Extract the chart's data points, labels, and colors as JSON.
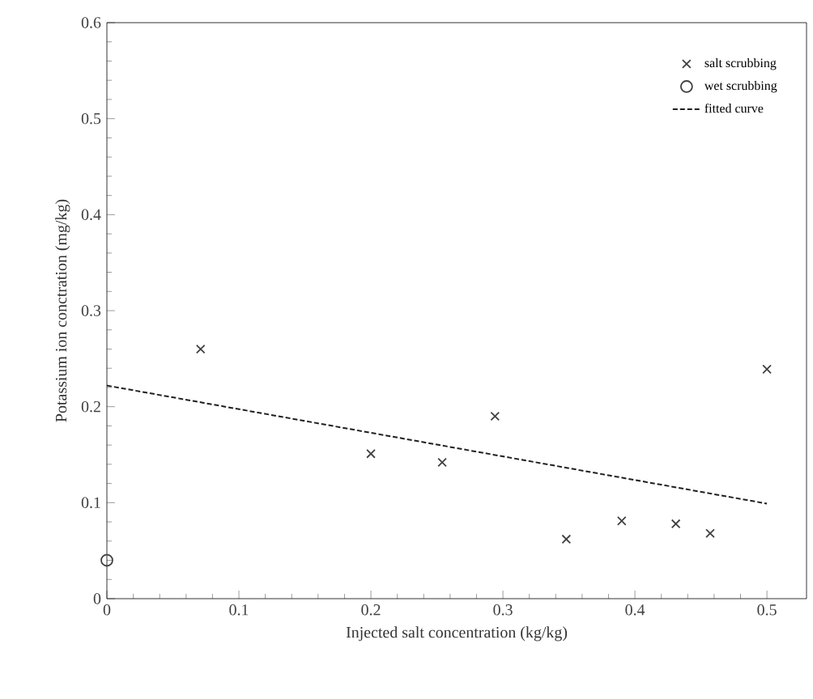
{
  "chart_data": {
    "type": "scatter",
    "xlabel": "Injected salt concentration (kg/kg)",
    "ylabel": "Potassium ion conctration (mg/kg)",
    "xlim": [
      0,
      0.53
    ],
    "xticks": [
      0,
      0.1,
      0.2,
      0.3,
      0.4,
      0.5
    ],
    "ylim": [
      0,
      0.6
    ],
    "yticks": [
      0,
      0.1,
      0.2,
      0.3,
      0.4,
      0.5,
      0.6
    ],
    "grid": false,
    "legend": "top right",
    "series": [
      {
        "name": "salt scrubbing",
        "marker": "cross",
        "color": "#404040",
        "x": [
          0.071,
          0.2,
          0.254,
          0.294,
          0.348,
          0.39,
          0.431,
          0.457,
          0.5
        ],
        "values": [
          0.26,
          0.151,
          0.142,
          0.19,
          0.062,
          0.081,
          0.078,
          0.068,
          0.239
        ]
      },
      {
        "name": "wet scrubbing",
        "marker": "circle",
        "color": "#404040",
        "x": [
          0
        ],
        "values": [
          0.04
        ]
      },
      {
        "name": "fitted curve",
        "type": "line",
        "line_style": "dashed",
        "marker": "none",
        "color": "#202020",
        "x": [
          0,
          0.5
        ],
        "values": [
          0.222,
          0.099
        ]
      }
    ]
  }
}
